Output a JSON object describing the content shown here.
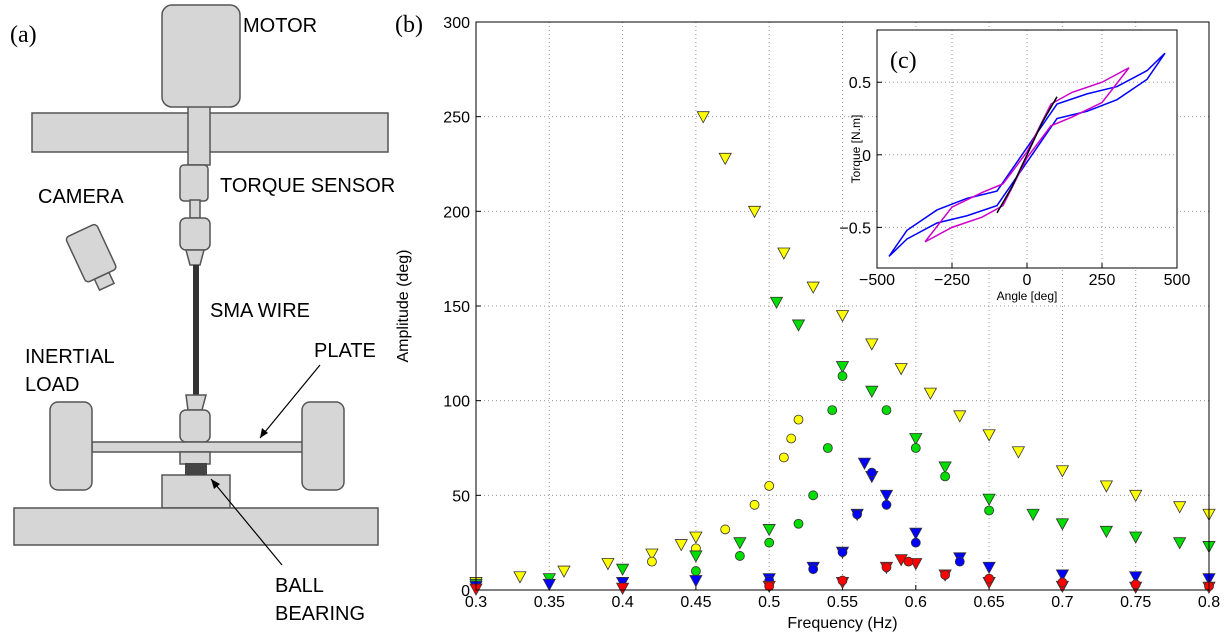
{
  "diagram": {
    "panel_label": "(a)",
    "motor": "MOTOR",
    "torque_sensor": "TORQUE SENSOR",
    "camera": "CAMERA",
    "sma_wire": "SMA WIRE",
    "inertial_load": [
      "INERTIAL",
      "LOAD"
    ],
    "plate": "PLATE",
    "ball_bearing": [
      "BALL",
      "BEARING"
    ]
  },
  "chart_data": [
    {
      "type": "scatter",
      "panel_label": "(b)",
      "x_label": "Frequency (Hz)",
      "y_label": "Amplitude (deg)",
      "xlim": [
        0.3,
        0.8
      ],
      "ylim": [
        0,
        300
      ],
      "xticks": [
        0.3,
        0.35,
        0.4,
        0.45,
        0.5,
        0.55,
        0.6,
        0.65,
        0.7,
        0.75,
        0.8
      ],
      "yticks": [
        0,
        50,
        100,
        150,
        200,
        250,
        300
      ],
      "grid": true,
      "series": [
        {
          "color": "#ffff00",
          "marker": "triangle",
          "x": [
            0.3,
            0.33,
            0.36,
            0.39,
            0.42,
            0.44,
            0.45,
            0.455,
            0.47,
            0.49,
            0.51,
            0.53,
            0.55,
            0.57,
            0.59,
            0.61,
            0.63,
            0.65,
            0.67,
            0.7,
            0.73,
            0.75,
            0.78,
            0.8
          ],
          "values": [
            4,
            7,
            10,
            14,
            19,
            24,
            28,
            250,
            228,
            200,
            178,
            160,
            145,
            130,
            117,
            104,
            92,
            82,
            73,
            63,
            55,
            50,
            44,
            40
          ]
        },
        {
          "color": "#ffff00",
          "marker": "circle",
          "x": [
            0.42,
            0.45,
            0.47,
            0.49,
            0.5,
            0.51,
            0.515,
            0.52
          ],
          "values": [
            15,
            22,
            32,
            45,
            55,
            70,
            80,
            90
          ]
        },
        {
          "color": "#00dd00",
          "marker": "triangle",
          "x": [
            0.3,
            0.35,
            0.4,
            0.45,
            0.48,
            0.5,
            0.505,
            0.52,
            0.55,
            0.57,
            0.6,
            0.62,
            0.65,
            0.68,
            0.7,
            0.73,
            0.75,
            0.78,
            0.8
          ],
          "values": [
            3,
            6,
            11,
            18,
            25,
            32,
            152,
            140,
            118,
            105,
            80,
            65,
            48,
            40,
            35,
            31,
            28,
            25,
            23
          ]
        },
        {
          "color": "#00dd00",
          "marker": "circle",
          "x": [
            0.45,
            0.48,
            0.5,
            0.52,
            0.53,
            0.54,
            0.543,
            0.55,
            0.58,
            0.6,
            0.62,
            0.65
          ],
          "values": [
            10,
            18,
            25,
            35,
            50,
            75,
            95,
            113,
            95,
            75,
            60,
            42
          ]
        },
        {
          "color": "#0000ff",
          "marker": "triangle",
          "x": [
            0.3,
            0.35,
            0.4,
            0.45,
            0.5,
            0.53,
            0.55,
            0.56,
            0.565,
            0.57,
            0.58,
            0.6,
            0.63,
            0.65,
            0.7,
            0.75,
            0.8
          ],
          "values": [
            2,
            3,
            4,
            5,
            6,
            12,
            20,
            40,
            67,
            60,
            50,
            30,
            17,
            12,
            8,
            7,
            6
          ]
        },
        {
          "color": "#0000ff",
          "marker": "circle",
          "x": [
            0.5,
            0.53,
            0.55,
            0.56,
            0.57,
            0.58,
            0.6,
            0.63
          ],
          "values": [
            5,
            11,
            20,
            40,
            62,
            45,
            25,
            15
          ]
        },
        {
          "color": "#ff0000",
          "marker": "triangle",
          "x": [
            0.3,
            0.4,
            0.5,
            0.55,
            0.58,
            0.59,
            0.6,
            0.62,
            0.65,
            0.7,
            0.75,
            0.8
          ],
          "values": [
            0.5,
            1,
            2,
            4,
            12,
            16,
            14,
            8,
            4,
            2,
            1.5,
            1.5
          ]
        },
        {
          "color": "#ff0000",
          "marker": "circle",
          "x": [
            0.5,
            0.55,
            0.58,
            0.595,
            0.62,
            0.65,
            0.7,
            0.75,
            0.8
          ],
          "values": [
            2,
            5,
            12,
            15,
            8,
            6,
            4,
            3,
            2
          ]
        }
      ]
    },
    {
      "type": "line",
      "panel_label": "(c)",
      "x_label": "Angle [deg]",
      "y_label": "Torque [N.m]",
      "xlim": [
        -500,
        500
      ],
      "ylim": [
        -0.78,
        0.86
      ],
      "xticks": [
        {
          "value": -500,
          "label": "−500"
        },
        {
          "value": -250,
          "label": "−250"
        },
        0,
        250,
        500
      ],
      "yticks": [
        {
          "value": -0.5,
          "label": "−0.5"
        },
        0,
        0.5
      ],
      "grid": true,
      "series": [
        {
          "color": "#0000ff",
          "x": [
            -460,
            -400,
            -300,
            -200,
            -100,
            0,
            100,
            200,
            300,
            400,
            460,
            400,
            300,
            200,
            100,
            0,
            -100,
            -200,
            -300,
            -400,
            -460
          ],
          "values": [
            -0.7,
            -0.58,
            -0.47,
            -0.42,
            -0.35,
            -0.05,
            0.25,
            0.3,
            0.38,
            0.52,
            0.7,
            0.58,
            0.47,
            0.42,
            0.35,
            0.05,
            -0.25,
            -0.3,
            -0.38,
            -0.52,
            -0.7
          ]
        },
        {
          "color": "#cc00cc",
          "x": [
            -340,
            -250,
            -150,
            -80,
            0,
            80,
            150,
            250,
            340,
            250,
            150,
            80,
            0,
            -80,
            -150,
            -250,
            -340
          ],
          "values": [
            -0.6,
            -0.5,
            -0.43,
            -0.35,
            -0.02,
            0.2,
            0.26,
            0.36,
            0.6,
            0.5,
            0.43,
            0.35,
            0.02,
            -0.2,
            -0.26,
            -0.36,
            -0.6
          ]
        },
        {
          "color": "#000000",
          "x": [
            -100,
            -50,
            0,
            50,
            100
          ],
          "values": [
            -0.4,
            -0.22,
            0,
            0.22,
            0.4
          ]
        }
      ]
    }
  ]
}
